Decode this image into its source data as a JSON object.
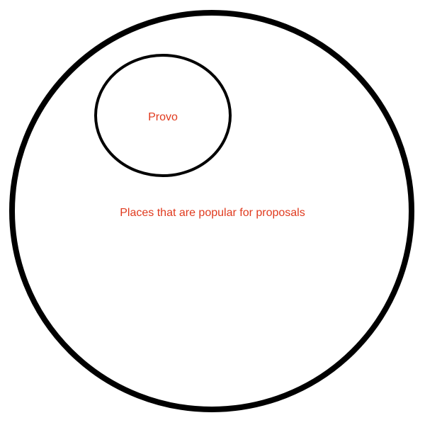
{
  "diagram": {
    "type": "euler-diagram",
    "outer_set": {
      "label": "Places that are popular for proposals"
    },
    "inner_set": {
      "label": "Provo"
    },
    "colors": {
      "stroke": "#000000",
      "label": "#e03a1e",
      "background": "#ffffff"
    }
  }
}
